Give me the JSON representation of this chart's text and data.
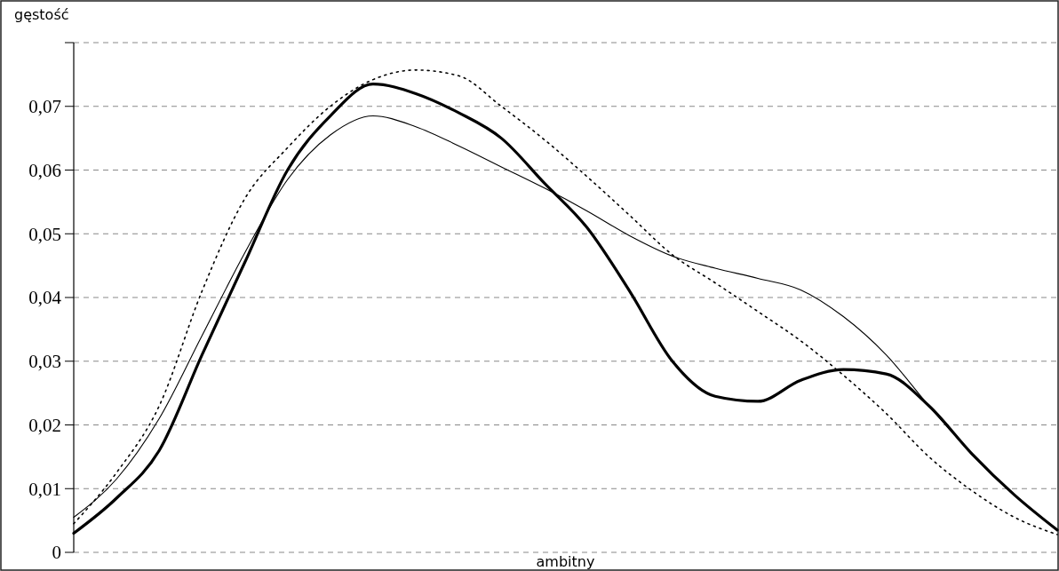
{
  "chart_data": {
    "type": "line",
    "xlabel": "ambitny",
    "ylabel": "gęstość",
    "categories": [
      null,
      null,
      null,
      null,
      null,
      null,
      null,
      null,
      null,
      null,
      null,
      null,
      null,
      null,
      null,
      null,
      null,
      null,
      null,
      null,
      null,
      null,
      null,
      null
    ],
    "series": [
      {
        "color": "#000000",
        "line_style": "solid",
        "values": [
          0.003,
          0.0085,
          0.016,
          0.031,
          0.0455,
          0.06,
          0.0685,
          0.0735,
          0.072,
          0.069,
          0.065,
          0.058,
          0.051,
          0.041,
          0.03,
          0.0245,
          0.0237,
          0.027,
          0.0287,
          0.028,
          0.023,
          0.0155,
          0.009,
          0.0035
        ]
      },
      {
        "color": "#000000",
        "line_style": "solid",
        "values": [
          0.0055,
          0.0115,
          0.021,
          0.034,
          0.047,
          0.0585,
          0.0655,
          0.0685,
          0.0668,
          0.0638,
          0.0605,
          0.0572,
          0.0536,
          0.0497,
          0.0465,
          0.0446,
          0.043,
          0.0412,
          0.037,
          0.031,
          0.023,
          0.0155,
          0.009,
          0.0035
        ]
      },
      {
        "color": "#000000",
        "line_style": "dotted",
        "values": [
          0.0045,
          0.0125,
          0.023,
          0.041,
          0.0555,
          0.0635,
          0.07,
          0.0742,
          0.0757,
          0.0748,
          0.07,
          0.0648,
          0.059,
          0.0529,
          0.0467,
          0.0423,
          0.0378,
          0.0332,
          0.0278,
          0.0218,
          0.015,
          0.0097,
          0.0055,
          0.0028
        ]
      }
    ],
    "ylim": [
      0,
      0.08
    ],
    "yticks": [
      {
        "value": 0,
        "label": "0"
      },
      {
        "value": 0.01,
        "label": "0,01"
      },
      {
        "value": 0.02,
        "label": "0,02"
      },
      {
        "value": 0.03,
        "label": "0,03"
      },
      {
        "value": 0.04,
        "label": "0,04"
      },
      {
        "value": 0.05,
        "label": "0,05"
      },
      {
        "value": 0.06,
        "label": "0,06"
      },
      {
        "value": 0.07,
        "label": "0,07"
      },
      {
        "value": 0.08,
        "label": null
      }
    ],
    "grid": "y"
  }
}
